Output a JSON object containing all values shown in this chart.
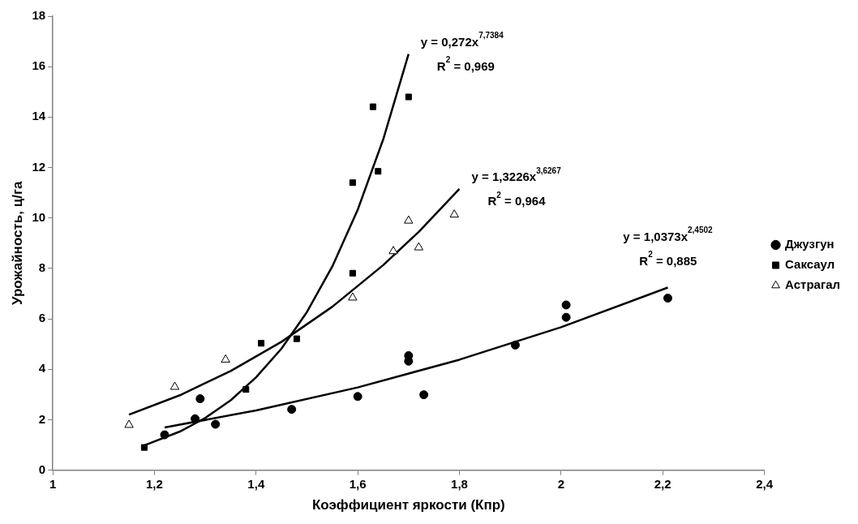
{
  "chart_data": {
    "type": "scatter",
    "xlabel": "Коэффициент яркости (Кпр)",
    "ylabel": "Урожайность, ц/га",
    "xlim": [
      1,
      2.4
    ],
    "xticks": [
      1,
      {
        "value": 1.2,
        "label": "1,2"
      },
      {
        "value": 1.4,
        "label": "1,4"
      },
      {
        "value": 1.6,
        "label": "1,6"
      },
      {
        "value": 1.8,
        "label": "1,8"
      },
      2,
      {
        "value": 2.2,
        "label": "2,2"
      },
      {
        "value": 2.4,
        "label": "2,4"
      }
    ],
    "ylim": [
      0,
      18
    ],
    "yticks": [
      0,
      2,
      4,
      6,
      8,
      10,
      12,
      14,
      16,
      18
    ],
    "grid": false,
    "legend": "right",
    "series": [
      {
        "name": "Джузгун",
        "type": "scatter",
        "marker": "circle",
        "color": "#000000",
        "x": [
          1.22,
          1.28,
          1.29,
          1.32,
          1.47,
          1.6,
          1.7,
          1.7,
          1.73,
          1.91,
          2.01,
          2.01,
          2.21
        ],
        "values": [
          1.4,
          2.04,
          2.83,
          1.82,
          2.41,
          2.92,
          4.54,
          4.32,
          2.99,
          4.96,
          6.55,
          6.06,
          6.82
        ]
      },
      {
        "name": "Саксаул",
        "type": "scatter",
        "marker": "square",
        "color": "#000000",
        "x": [
          1.18,
          1.38,
          1.41,
          1.48,
          1.59,
          1.59,
          1.64,
          1.63,
          1.7
        ],
        "values": [
          0.9,
          3.2,
          5.03,
          5.21,
          7.81,
          11.4,
          11.85,
          14.41,
          14.8
        ]
      },
      {
        "name": "Астрагал",
        "type": "scatter",
        "marker": "triangle",
        "color": "#000000",
        "x": [
          1.15,
          1.24,
          1.34,
          1.59,
          1.67,
          1.72,
          1.7,
          1.79
        ],
        "values": [
          1.79,
          3.3,
          4.38,
          6.84,
          8.68,
          8.83,
          9.89,
          10.13
        ]
      },
      {
        "type": "line",
        "marker": "none",
        "line_style": "solid",
        "color": "#000000",
        "x": [
          1.18,
          1.25,
          1.3,
          1.35,
          1.4,
          1.45,
          1.5,
          1.55,
          1.6,
          1.65,
          1.7
        ],
        "values": [
          0.98,
          1.53,
          2.07,
          2.77,
          3.68,
          4.82,
          6.27,
          8.08,
          10.33,
          13.11,
          16.5
        ]
      },
      {
        "type": "line",
        "marker": "none",
        "line_style": "solid",
        "color": "#000000",
        "x": [
          1.15,
          1.25,
          1.35,
          1.45,
          1.55,
          1.65,
          1.72,
          1.8
        ],
        "values": [
          2.2,
          2.97,
          3.93,
          5.09,
          6.48,
          8.13,
          9.45,
          11.15
        ]
      },
      {
        "type": "line",
        "marker": "none",
        "line_style": "solid",
        "color": "#000000",
        "x": [
          1.22,
          1.4,
          1.6,
          1.8,
          2.0,
          2.21
        ],
        "values": [
          1.69,
          2.37,
          3.28,
          4.38,
          5.67,
          7.24
        ]
      }
    ],
    "annotations": [
      "y = 0,272x$^{7,7384}$",
      "R$^{2}$ = 0,969",
      "y = 1,3226x$^{3,6267}$",
      "R$^{2}$ = 0,964",
      "y = 1,0373x$^{2,4502}$",
      "R$^{2}$ = 0,885"
    ]
  }
}
